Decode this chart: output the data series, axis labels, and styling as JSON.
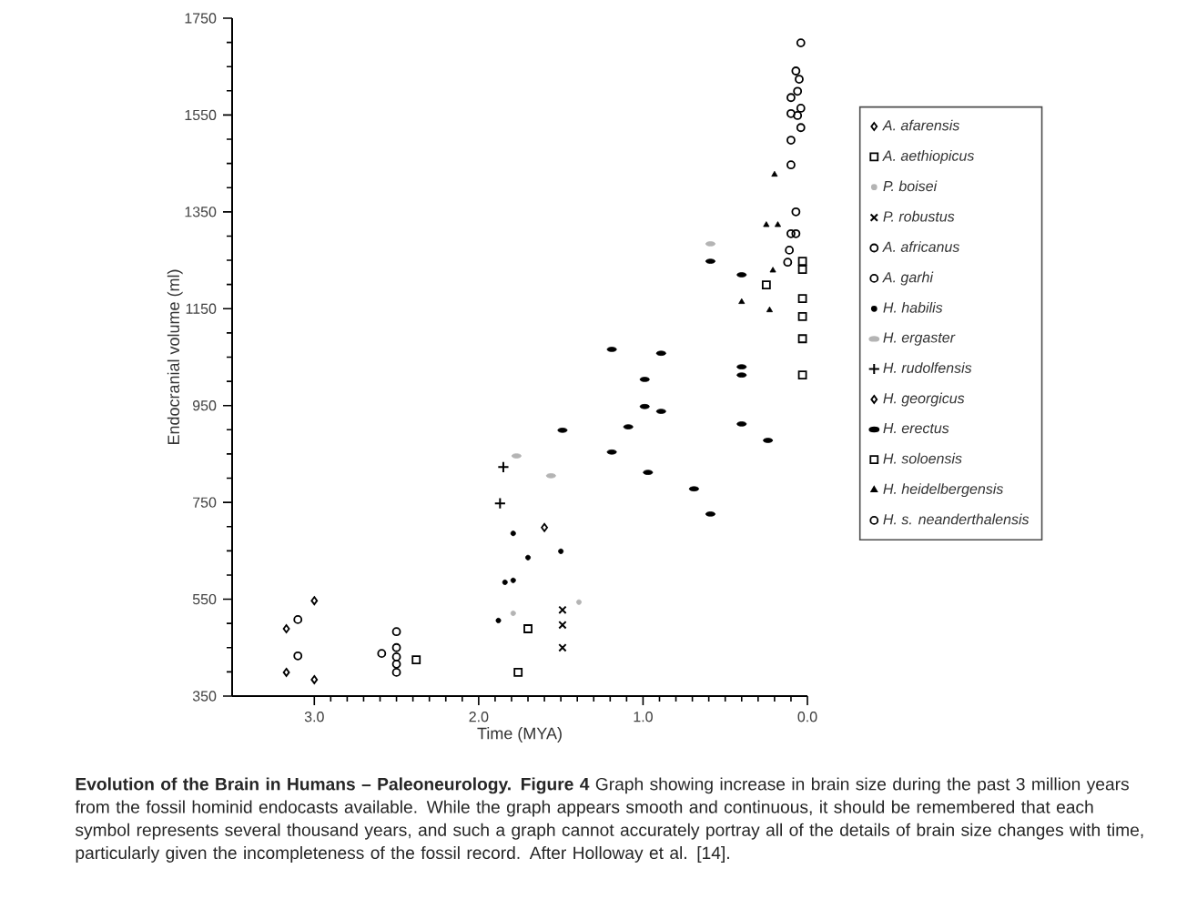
{
  "chart_data": {
    "type": "scatter",
    "xlabel": "Time (MYA)",
    "ylabel": "Endocranial volume (ml)",
    "xlim": [
      3.5,
      0
    ],
    "ylim": [
      350,
      1750
    ],
    "xticks": [
      {
        "value": 3,
        "label": "3.0"
      },
      {
        "value": 2,
        "label": "2.0"
      },
      {
        "value": 1,
        "label": "1.0"
      },
      {
        "value": 0,
        "label": "0.0"
      }
    ],
    "yticks": [
      350,
      550,
      750,
      950,
      1150,
      1350,
      1550,
      1750
    ],
    "grid": false,
    "legend": "right",
    "series": [
      {
        "name": "A. afarensis",
        "color": "#000000",
        "marker": "diamond",
        "x": [
          3.17,
          3.17,
          3.0,
          3.0
        ],
        "values": [
          489,
          399,
          547,
          384
        ]
      },
      {
        "name": "A. aethiopicus",
        "color": "#000000",
        "marker": "square",
        "x": [
          2.38,
          1.76,
          1.7
        ],
        "values": [
          425,
          399,
          489
        ]
      },
      {
        "name": "P. boisei",
        "color": "#b4b4b4",
        "marker": "dot",
        "x": [
          1.39,
          1.79
        ],
        "values": [
          544,
          521
        ]
      },
      {
        "name": "P. robustus",
        "color": "#000000",
        "marker": "cross",
        "x": [
          1.49,
          1.49,
          1.49
        ],
        "values": [
          528,
          497,
          450
        ]
      },
      {
        "name": "A. africanus",
        "color": "#000000",
        "marker": "circle",
        "x": [
          3.1,
          3.1,
          2.59,
          2.5,
          2.5,
          2.5,
          2.5
        ],
        "values": [
          508,
          433,
          438,
          483,
          431,
          416,
          399
        ]
      },
      {
        "name": "A. garhi",
        "color": "#000000",
        "marker": "circle",
        "x": [
          2.5
        ],
        "values": [
          450
        ]
      },
      {
        "name": "H. habilis",
        "color": "#000000",
        "marker": "dot",
        "x": [
          1.79,
          1.7,
          1.5,
          1.84,
          1.79,
          1.88
        ],
        "values": [
          686,
          636,
          649,
          585,
          589,
          506
        ]
      },
      {
        "name": "H. ergaster",
        "color": "#b4b4b4",
        "x": [
          1.77,
          1.56,
          0.59
        ],
        "values": [
          846,
          805,
          1284
        ]
      },
      {
        "name": "H. rudolfensis",
        "color": "#000000",
        "marker": "plus",
        "x": [
          1.85,
          1.87
        ],
        "values": [
          823,
          748
        ]
      },
      {
        "name": "H. georgicus",
        "color": "#000000",
        "marker": "diamond",
        "x": [
          1.6
        ],
        "values": [
          698
        ]
      },
      {
        "name": "H. erectus",
        "color": "#000000",
        "x": [
          1.49,
          1.19,
          0.89,
          0.99,
          0.4,
          0.4,
          0.99,
          0.89,
          1.09,
          1.19,
          0.4,
          0.24,
          0.97,
          0.69,
          0.59,
          0.4,
          0.59
        ],
        "values": [
          899,
          1066,
          1058,
          1004,
          1030,
          1013,
          948,
          938,
          906,
          854,
          912,
          878,
          812,
          778,
          726,
          1220,
          1248
        ]
      },
      {
        "name": "H. soloensis",
        "color": "#000000",
        "marker": "square",
        "x": [
          0.03,
          0.03,
          0.03,
          0.03,
          0.03,
          0.03,
          0.25
        ],
        "values": [
          1248,
          1231,
          1171,
          1134,
          1088,
          1013,
          1199
        ]
      },
      {
        "name": "H. heidelbergensis",
        "color": "#000000",
        "marker": "triangle",
        "x": [
          0.2,
          0.25,
          0.18,
          0.21,
          0.4,
          0.23
        ],
        "values": [
          1427,
          1323,
          1323,
          1229,
          1164,
          1147
        ]
      },
      {
        "name": "H. s. neanderthalensis",
        "color": "#000000",
        "marker": "circle",
        "x": [
          0.07,
          0.1,
          0.07,
          0.11,
          0.12,
          0.04,
          0.07,
          0.05,
          0.06,
          0.1,
          0.04,
          0.1,
          0.06,
          0.04,
          0.1,
          0.1
        ],
        "values": [
          1350,
          1305,
          1305,
          1271,
          1246,
          1699,
          1641,
          1624,
          1599,
          1586,
          1564,
          1553,
          1549,
          1524,
          1498,
          1447
        ]
      }
    ],
    "annotations": [
      "**Evolution of the Brain in Humans – Paleoneurology. Figure 4** Graph showing increase in brain size during the past 3 million years from the fossil hominid endocasts available. While the graph appears smooth and continuous, it should be remembered that each symbol represents several thousand years, and such a graph cannot accurately portray all of the details of brain size changes with time, particularly given the incompleteness of the fossil record. After Holloway et al. [14]."
    ]
  }
}
